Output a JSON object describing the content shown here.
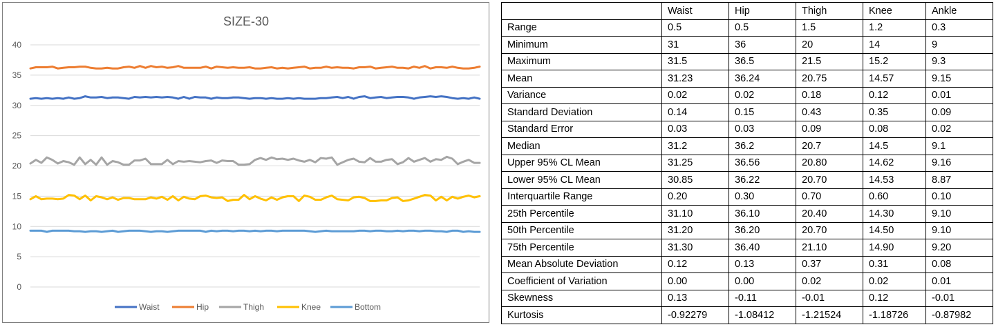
{
  "chart_data": {
    "type": "line",
    "title": "SIZE-30",
    "xlabel": "",
    "ylabel": "",
    "ylim": [
      0,
      40
    ],
    "yticks": [
      0,
      5,
      10,
      15,
      20,
      25,
      30,
      35,
      40
    ],
    "grid": true,
    "legend": "bottom",
    "series": [
      {
        "name": "Waist",
        "color": "#4472C4",
        "values": [
          31.1,
          31.2,
          31.1,
          31.2,
          31.1,
          31.2,
          31.1,
          31.3,
          31.1,
          31.2,
          31.5,
          31.3,
          31.3,
          31.4,
          31.2,
          31.3,
          31.3,
          31.2,
          31.1,
          31.4,
          31.3,
          31.4,
          31.3,
          31.4,
          31.3,
          31.4,
          31.3,
          31.1,
          31.4,
          31.1,
          31.4,
          31.3,
          31.3,
          31.1,
          31.3,
          31.2,
          31.2,
          31.3,
          31.3,
          31.2,
          31.1,
          31.2,
          31.2,
          31.1,
          31.2,
          31.1,
          31.1,
          31.2,
          31.1,
          31.2,
          31.1,
          31.1,
          31.1,
          31.2,
          31.2,
          31.3,
          31.4,
          31.2,
          31.4,
          31.1,
          31.4,
          31.5,
          31.2,
          31.3,
          31.4,
          31.2,
          31.3,
          31.4,
          31.4,
          31.3,
          31.1,
          31.3,
          31.4,
          31.5,
          31.4,
          31.5,
          31.4,
          31.2,
          31.1,
          31.2,
          31.1,
          31.3,
          31.1
        ]
      },
      {
        "name": "Hip",
        "color": "#ED7D31",
        "values": [
          36.1,
          36.3,
          36.3,
          36.3,
          36.4,
          36.1,
          36.2,
          36.3,
          36.3,
          36.4,
          36.4,
          36.2,
          36.1,
          36.1,
          36.2,
          36.1,
          36.1,
          36.3,
          36.4,
          36.2,
          36.5,
          36.2,
          36.5,
          36.3,
          36.4,
          36.2,
          36.3,
          36.5,
          36.2,
          36.2,
          36.2,
          36.2,
          36.4,
          36.1,
          36.4,
          36.3,
          36.2,
          36.3,
          36.2,
          36.2,
          36.3,
          36.1,
          36.1,
          36.2,
          36.3,
          36.1,
          36.2,
          36.1,
          36.2,
          36.3,
          36.4,
          36.1,
          36.2,
          36.2,
          36.4,
          36.2,
          36.3,
          36.2,
          36.2,
          36.1,
          36.3,
          36.3,
          36.4,
          36.1,
          36.2,
          36.3,
          36.4,
          36.2,
          36.2,
          36.1,
          36.4,
          36.2,
          36.5,
          36.1,
          36.3,
          36.3,
          36.2,
          36.4,
          36.2,
          36.1,
          36.1,
          36.2,
          36.4
        ]
      },
      {
        "name": "Thigh",
        "color": "#A5A5A5",
        "values": [
          20.4,
          21.0,
          20.5,
          21.4,
          21.0,
          20.4,
          20.8,
          20.6,
          20.2,
          21.4,
          20.3,
          21.0,
          20.2,
          21.4,
          20.2,
          20.8,
          20.6,
          20.2,
          20.2,
          20.9,
          20.9,
          21.2,
          20.3,
          20.3,
          20.3,
          21.0,
          20.3,
          20.8,
          20.7,
          20.8,
          20.7,
          20.6,
          20.8,
          20.9,
          20.5,
          20.9,
          20.8,
          20.8,
          20.2,
          20.2,
          20.3,
          21.0,
          21.3,
          21.0,
          21.4,
          21.1,
          21.2,
          21.0,
          21.2,
          20.9,
          20.7,
          21.0,
          20.6,
          21.3,
          21.2,
          21.4,
          20.2,
          20.6,
          21.0,
          21.2,
          20.7,
          20.6,
          21.3,
          20.7,
          20.7,
          21.0,
          21.1,
          20.3,
          20.6,
          21.3,
          20.7,
          21.0,
          21.3,
          20.7,
          21.1,
          21.0,
          21.5,
          21.2,
          20.3,
          20.7,
          21.0,
          20.5,
          20.5
        ]
      },
      {
        "name": "Knee",
        "color": "#FFC000",
        "values": [
          14.5,
          15.0,
          14.5,
          14.6,
          14.6,
          14.5,
          14.6,
          15.2,
          15.1,
          14.5,
          15.1,
          14.3,
          15.0,
          14.8,
          14.5,
          14.8,
          14.4,
          14.7,
          14.7,
          14.5,
          14.5,
          14.5,
          14.8,
          14.6,
          14.9,
          14.4,
          15.0,
          14.3,
          14.9,
          14.6,
          14.5,
          15.0,
          15.1,
          14.8,
          14.7,
          14.8,
          14.2,
          14.4,
          14.4,
          15.2,
          14.5,
          15.0,
          14.6,
          14.3,
          14.8,
          14.4,
          14.8,
          15.0,
          15.0,
          14.2,
          15.1,
          14.9,
          14.4,
          14.4,
          14.8,
          15.1,
          14.5,
          14.4,
          14.3,
          14.8,
          14.9,
          14.7,
          14.2,
          14.2,
          14.3,
          14.3,
          14.7,
          14.8,
          14.2,
          14.3,
          14.6,
          14.9,
          15.2,
          15.1,
          14.3,
          14.9,
          14.3,
          14.9,
          14.6,
          14.9,
          15.1,
          14.8,
          15.0
        ]
      },
      {
        "name": "Bottom",
        "color": "#5B9BD5",
        "values": [
          9.3,
          9.3,
          9.3,
          9.1,
          9.3,
          9.3,
          9.3,
          9.3,
          9.2,
          9.2,
          9.1,
          9.2,
          9.2,
          9.1,
          9.2,
          9.3,
          9.1,
          9.2,
          9.3,
          9.3,
          9.3,
          9.2,
          9.1,
          9.2,
          9.2,
          9.1,
          9.2,
          9.3,
          9.3,
          9.3,
          9.3,
          9.3,
          9.1,
          9.3,
          9.2,
          9.3,
          9.3,
          9.2,
          9.3,
          9.3,
          9.2,
          9.3,
          9.2,
          9.3,
          9.3,
          9.2,
          9.3,
          9.3,
          9.3,
          9.3,
          9.3,
          9.2,
          9.1,
          9.2,
          9.3,
          9.2,
          9.2,
          9.2,
          9.2,
          9.2,
          9.3,
          9.3,
          9.2,
          9.3,
          9.3,
          9.2,
          9.2,
          9.3,
          9.2,
          9.3,
          9.3,
          9.2,
          9.3,
          9.3,
          9.2,
          9.2,
          9.1,
          9.3,
          9.3,
          9.1,
          9.2,
          9.1,
          9.1
        ]
      }
    ]
  },
  "stats_table": {
    "columns": [
      "",
      "Waist",
      "Hip",
      "Thigh",
      "Knee",
      "Ankle"
    ],
    "rows": [
      [
        "Range",
        "0.5",
        "0.5",
        "1.5",
        "1.2",
        "0.3"
      ],
      [
        "Minimum",
        "31",
        "36",
        "20",
        "14",
        "9"
      ],
      [
        "Maximum",
        "31.5",
        "36.5",
        "21.5",
        "15.2",
        "9.3"
      ],
      [
        "Mean",
        "31.23",
        "36.24",
        "20.75",
        "14.57",
        "9.15"
      ],
      [
        "Variance",
        "0.02",
        "0.02",
        "0.18",
        "0.12",
        "0.01"
      ],
      [
        "Standard Deviation",
        "0.14",
        "0.15",
        "0.43",
        "0.35",
        "0.09"
      ],
      [
        "Standard Error",
        "0.03",
        "0.03",
        "0.09",
        "0.08",
        "0.02"
      ],
      [
        "Median",
        "31.2",
        "36.2",
        "20.7",
        "14.5",
        "9.1"
      ],
      [
        "Upper 95% CL Mean",
        "31.25",
        "36.56",
        "20.80",
        "14.62",
        "9.16"
      ],
      [
        "Lower 95% CL Mean",
        "30.85",
        "36.22",
        "20.70",
        "14.53",
        "8.87"
      ],
      [
        "Interquartile Range",
        "0.20",
        "0.30",
        "0.70",
        "0.60",
        "0.10"
      ],
      [
        "25th Percentile",
        "31.10",
        "36.10",
        "20.40",
        "14.30",
        "9.10"
      ],
      [
        "50th Percentile",
        "31.20",
        "36.20",
        "20.70",
        "14.50",
        "9.10"
      ],
      [
        "75th Percentile",
        "31.30",
        "36.40",
        "21.10",
        "14.90",
        "9.20"
      ],
      [
        "Mean Absolute Deviation",
        "0.12",
        "0.13",
        "0.37",
        "0.31",
        "0.08"
      ],
      [
        "Coefficient of Variation",
        "0.00",
        "0.00",
        "0.02",
        "0.02",
        "0.01"
      ],
      [
        "Skewness",
        "0.13",
        "-0.11",
        "-0.01",
        "0.12",
        "-0.01"
      ],
      [
        "Kurtosis",
        "-0.92279",
        "-1.08412",
        "-1.21524",
        "-1.18726",
        "-0.87982"
      ]
    ]
  }
}
